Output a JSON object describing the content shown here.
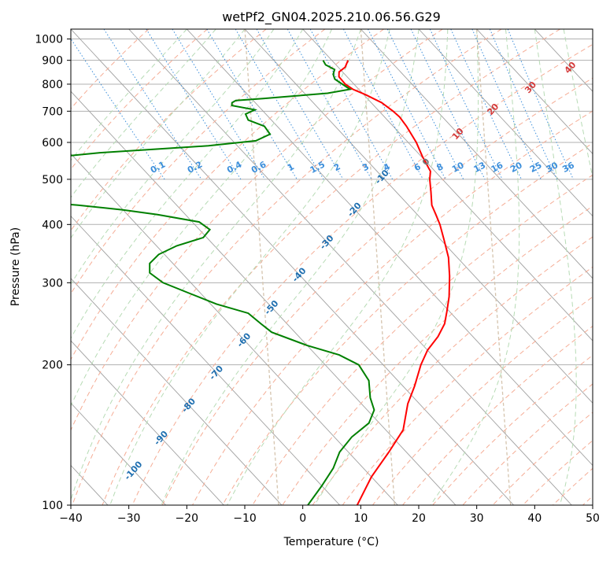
{
  "chart_data": {
    "type": "line",
    "subtype": "skew-T log-P diagram",
    "title": "wetPf2_GN04.2025.210.06.56.G29",
    "xlabel": "Temperature (°C)",
    "ylabel": "Pressure (hPa)",
    "xlim": [
      -40,
      50
    ],
    "ylim": [
      1050,
      100
    ],
    "y_scale": "log",
    "x_ticks": [
      -40,
      -30,
      -20,
      -10,
      0,
      10,
      20,
      30,
      40,
      50
    ],
    "y_ticks": [
      1000,
      900,
      800,
      700,
      600,
      500,
      400,
      300,
      200,
      100
    ],
    "grid": true,
    "skew_factor": 35,
    "series": [
      {
        "key": "temperature",
        "color": "#ff0000",
        "points": [
          [
            900,
            2.8
          ],
          [
            870,
            1.2
          ],
          [
            850,
            -0.6
          ],
          [
            830,
            -1.4
          ],
          [
            800,
            -1.5
          ],
          [
            780,
            -1.0
          ],
          [
            760,
            0.3
          ],
          [
            730,
            1.8
          ],
          [
            700,
            2.4
          ],
          [
            680,
            2.6
          ],
          [
            650,
            2.3
          ],
          [
            600,
            1.4
          ],
          [
            560,
            0.2
          ],
          [
            520,
            -0.8
          ],
          [
            500,
            -2.2
          ],
          [
            470,
            -4.0
          ],
          [
            440,
            -6.0
          ],
          [
            420,
            -6.8
          ],
          [
            400,
            -7.7
          ],
          [
            370,
            -9.5
          ],
          [
            340,
            -11.5
          ],
          [
            310,
            -14.3
          ],
          [
            280,
            -17.7
          ],
          [
            260,
            -20.5
          ],
          [
            245,
            -22.8
          ],
          [
            230,
            -26.0
          ],
          [
            215,
            -30.0
          ],
          [
            200,
            -33.5
          ],
          [
            180,
            -38.0
          ],
          [
            165,
            -42.0
          ],
          [
            145,
            -47.0
          ],
          [
            130,
            -53.0
          ],
          [
            115,
            -60.0
          ],
          [
            100,
            -67.0
          ]
        ]
      },
      {
        "key": "dewpoint",
        "color": "#008000",
        "points": [
          [
            900,
            -1.5
          ],
          [
            880,
            -1.8
          ],
          [
            860,
            -1.0
          ],
          [
            840,
            -2.0
          ],
          [
            820,
            -2.5
          ],
          [
            800,
            -2.0
          ],
          [
            780,
            -1.5
          ],
          [
            765,
            -6.0
          ],
          [
            755,
            -12.0
          ],
          [
            745,
            -18.0
          ],
          [
            738,
            -23.0
          ],
          [
            730,
            -24.0
          ],
          [
            720,
            -24.5
          ],
          [
            705,
            -21.2
          ],
          [
            690,
            -23.5
          ],
          [
            670,
            -24.0
          ],
          [
            650,
            -22.2
          ],
          [
            625,
            -22.5
          ],
          [
            605,
            -26.0
          ],
          [
            590,
            -35.0
          ],
          [
            580,
            -45.0
          ],
          [
            570,
            -55.0
          ],
          [
            545,
            -72.0
          ],
          [
            520,
            -85.0
          ],
          [
            500,
            -92.0
          ],
          [
            480,
            -89.0
          ],
          [
            470,
            -86.0
          ],
          [
            460,
            -82.0
          ],
          [
            450,
            -76.0
          ],
          [
            440,
            -67.0
          ],
          [
            430,
            -60.0
          ],
          [
            420,
            -54.8
          ],
          [
            405,
            -48.8
          ],
          [
            390,
            -48.2
          ],
          [
            375,
            -50.6
          ],
          [
            360,
            -56.5
          ],
          [
            345,
            -61.0
          ],
          [
            330,
            -64.0
          ],
          [
            315,
            -65.5
          ],
          [
            300,
            -64.8
          ],
          [
            285,
            -62.0
          ],
          [
            270,
            -59.0
          ],
          [
            258,
            -55.0
          ],
          [
            245,
            -54.5
          ],
          [
            235,
            -54.0
          ],
          [
            220,
            -50.0
          ],
          [
            210,
            -46.0
          ],
          [
            200,
            -44.2
          ],
          [
            185,
            -45.0
          ],
          [
            170,
            -47.5
          ],
          [
            160,
            -48.8
          ],
          [
            150,
            -51.8
          ],
          [
            140,
            -57.0
          ],
          [
            130,
            -61.5
          ],
          [
            120,
            -65.2
          ],
          [
            110,
            -70.0
          ],
          [
            100,
            -75.5
          ]
        ]
      }
    ],
    "background_lines": {
      "isotherms_colour": "#a0a0a0",
      "dry_adiabats_colour": "#f5ad96",
      "moist_adiabats_colour": "#b7dbb5",
      "mixing_ratio_colour": "#3d8fdb",
      "isentrope_colour": "#d5c4ae"
    },
    "mixing_ratio_labels": [
      "0.1",
      "0.2",
      "0.4",
      "0.6",
      "1",
      "1.5",
      "2",
      "3",
      "4",
      "6",
      "8",
      "10",
      "13",
      "16",
      "20",
      "25",
      "30",
      "36"
    ],
    "isotherm_labels": [
      "-100",
      "-90",
      "-80",
      "-70",
      "-60",
      "-50",
      "-40",
      "-30",
      "-20",
      "-10",
      "0",
      "10",
      "20",
      "30",
      "40"
    ]
  }
}
